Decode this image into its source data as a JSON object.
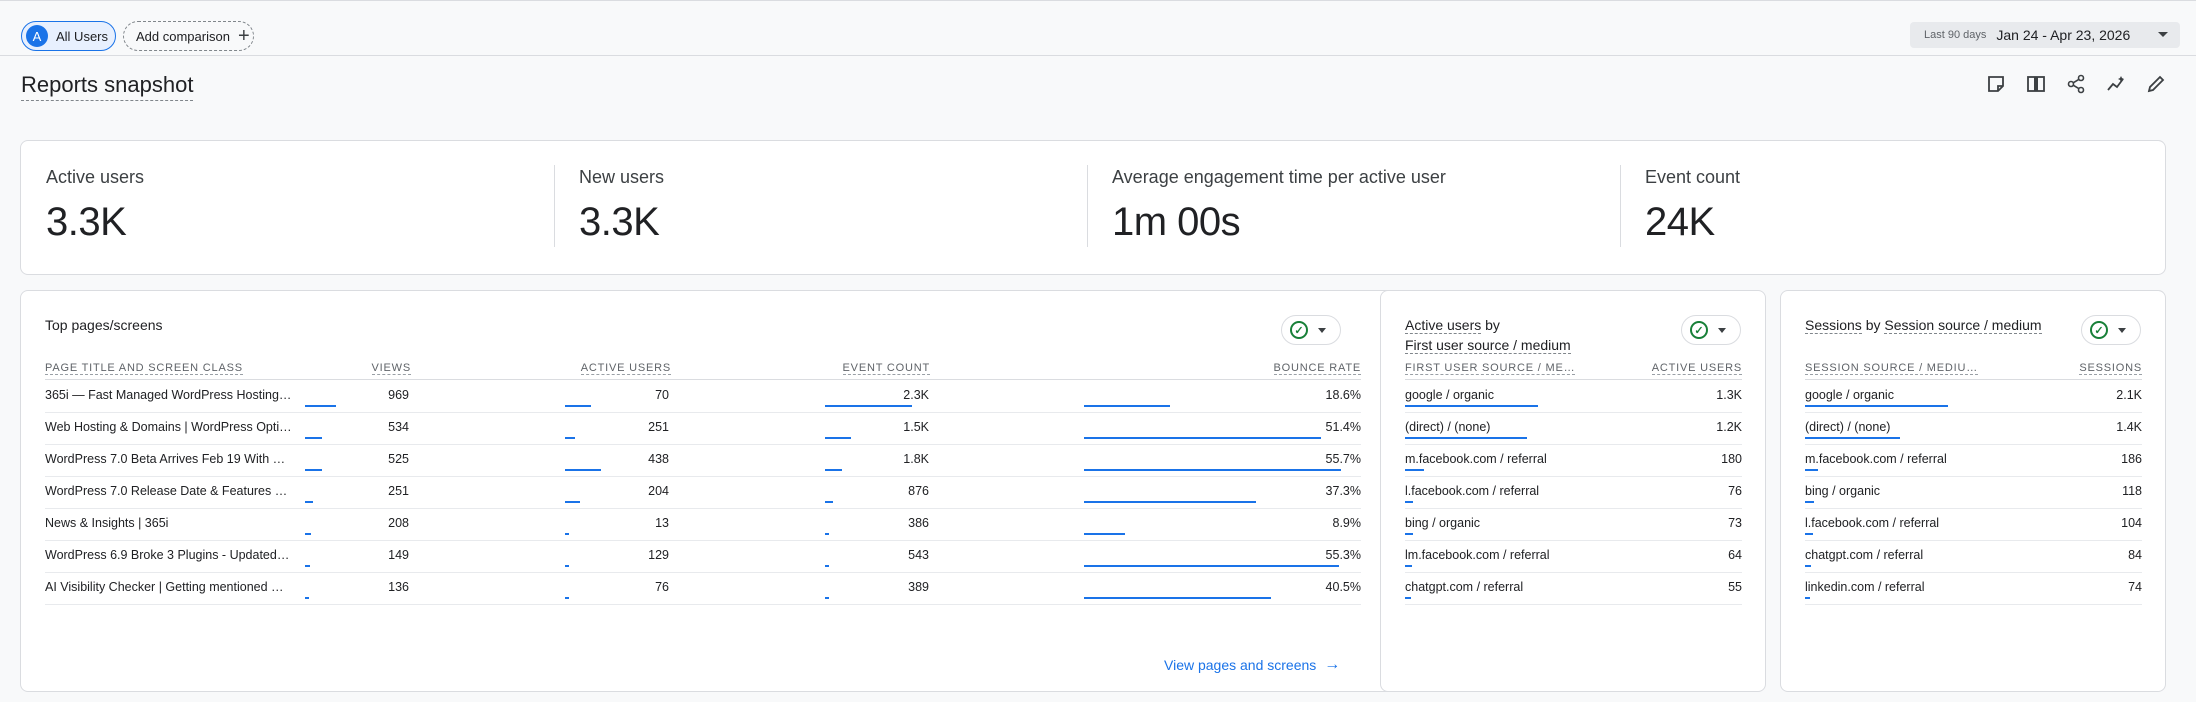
{
  "topbar": {
    "segment_chip": {
      "avatar": "A",
      "label": "All Users"
    },
    "add_comparison": "Add comparison",
    "date_range": {
      "label": "Last 90 days",
      "value": "Jan 24 - Apr 23, 2026"
    }
  },
  "page_title": "Reports snapshot",
  "toolbar_icons": [
    "notes-icon",
    "compare-columns-icon",
    "share-icon",
    "insights-icon",
    "edit-pencil-icon"
  ],
  "metrics": [
    {
      "label": "Active users",
      "value": "3.3K"
    },
    {
      "label": "New users",
      "value": "3.3K"
    },
    {
      "label": "Average engagement time per active user",
      "value": "1m 00s"
    },
    {
      "label": "Event count",
      "value": "24K"
    }
  ],
  "top_pages": {
    "title": "Top pages/screens",
    "headers": [
      "Page title and screen class",
      "Views",
      "Active users",
      "Event count",
      "Bounce rate"
    ],
    "rows": [
      {
        "page": "365i — Fast Managed WordPress Hosting…",
        "views": "969",
        "views_frac": 0.12,
        "active": "70",
        "active_frac": 0.1,
        "events": "2.3K",
        "events_frac": 0.34,
        "bounce": "18.6%",
        "bounce_frac": 0.334
      },
      {
        "page": "Web Hosting & Domains | WordPress Opti…",
        "views": "534",
        "views_frac": 0.066,
        "active": "251",
        "active_frac": 0.04,
        "events": "1.5K",
        "events_frac": 0.1,
        "bounce": "51.4%",
        "bounce_frac": 0.923
      },
      {
        "page": "WordPress 7.0 Beta Arrives Feb 19 With …",
        "views": "525",
        "views_frac": 0.065,
        "active": "438",
        "active_frac": 0.14,
        "events": "1.8K",
        "events_frac": 0.068,
        "bounce": "55.7%",
        "bounce_frac": 1.0
      },
      {
        "page": "WordPress 7.0 Release Date & Features …",
        "views": "251",
        "views_frac": 0.03,
        "active": "204",
        "active_frac": 0.06,
        "events": "876",
        "events_frac": 0.03,
        "bounce": "37.3%",
        "bounce_frac": 0.67
      },
      {
        "page": "News & Insights | 365i",
        "views": "208",
        "views_frac": 0.025,
        "active": "13",
        "active_frac": 0.01,
        "events": "386",
        "events_frac": 0.013,
        "bounce": "8.9%",
        "bounce_frac": 0.16
      },
      {
        "page": "WordPress 6.9 Broke 3 Plugins - Updated…",
        "views": "149",
        "views_frac": 0.018,
        "active": "129",
        "active_frac": 0.017,
        "events": "543",
        "events_frac": 0.016,
        "bounce": "55.3%",
        "bounce_frac": 0.993
      },
      {
        "page": "AI Visibility Checker | Getting mentioned …",
        "views": "136",
        "views_frac": 0.016,
        "active": "76",
        "active_frac": 0.01,
        "events": "389",
        "events_frac": 0.012,
        "bounce": "40.5%",
        "bounce_frac": 0.727
      }
    ],
    "view_link": "View pages and screens"
  },
  "first_user_source": {
    "title_line1": "Active users",
    "title_by": "by",
    "title_line2": "First user source / medium",
    "headers": [
      "First user source / me…",
      "Active users"
    ],
    "rows": [
      {
        "source": "google / organic",
        "value": "1.3K",
        "frac": 0.7
      },
      {
        "source": "(direct) / (none)",
        "value": "1.2K",
        "frac": 0.64
      },
      {
        "source": "m.facebook.com / referral",
        "value": "180",
        "frac": 0.1
      },
      {
        "source": "l.facebook.com / referral",
        "value": "76",
        "frac": 0.04
      },
      {
        "source": "bing / organic",
        "value": "73",
        "frac": 0.04
      },
      {
        "source": "lm.facebook.com / referral",
        "value": "64",
        "frac": 0.035
      },
      {
        "source": "chatgpt.com / referral",
        "value": "55",
        "frac": 0.03
      }
    ]
  },
  "session_source": {
    "title_part1": "Sessions",
    "title_by": "by",
    "title_part2": "Session source / medium",
    "headers": [
      "Session source / mediu…",
      "Sessions"
    ],
    "rows": [
      {
        "source": "google / organic",
        "value": "2.1K",
        "frac": 0.75
      },
      {
        "source": "(direct) / (none)",
        "value": "1.4K",
        "frac": 0.5
      },
      {
        "source": "m.facebook.com / referral",
        "value": "186",
        "frac": 0.07
      },
      {
        "source": "bing / organic",
        "value": "118",
        "frac": 0.045
      },
      {
        "source": "l.facebook.com / referral",
        "value": "104",
        "frac": 0.04
      },
      {
        "source": "chatgpt.com / referral",
        "value": "84",
        "frac": 0.03
      },
      {
        "source": "linkedin.com / referral",
        "value": "74",
        "frac": 0.028
      }
    ]
  },
  "colors": {
    "accent": "#1a73e8",
    "check": "#188038"
  }
}
